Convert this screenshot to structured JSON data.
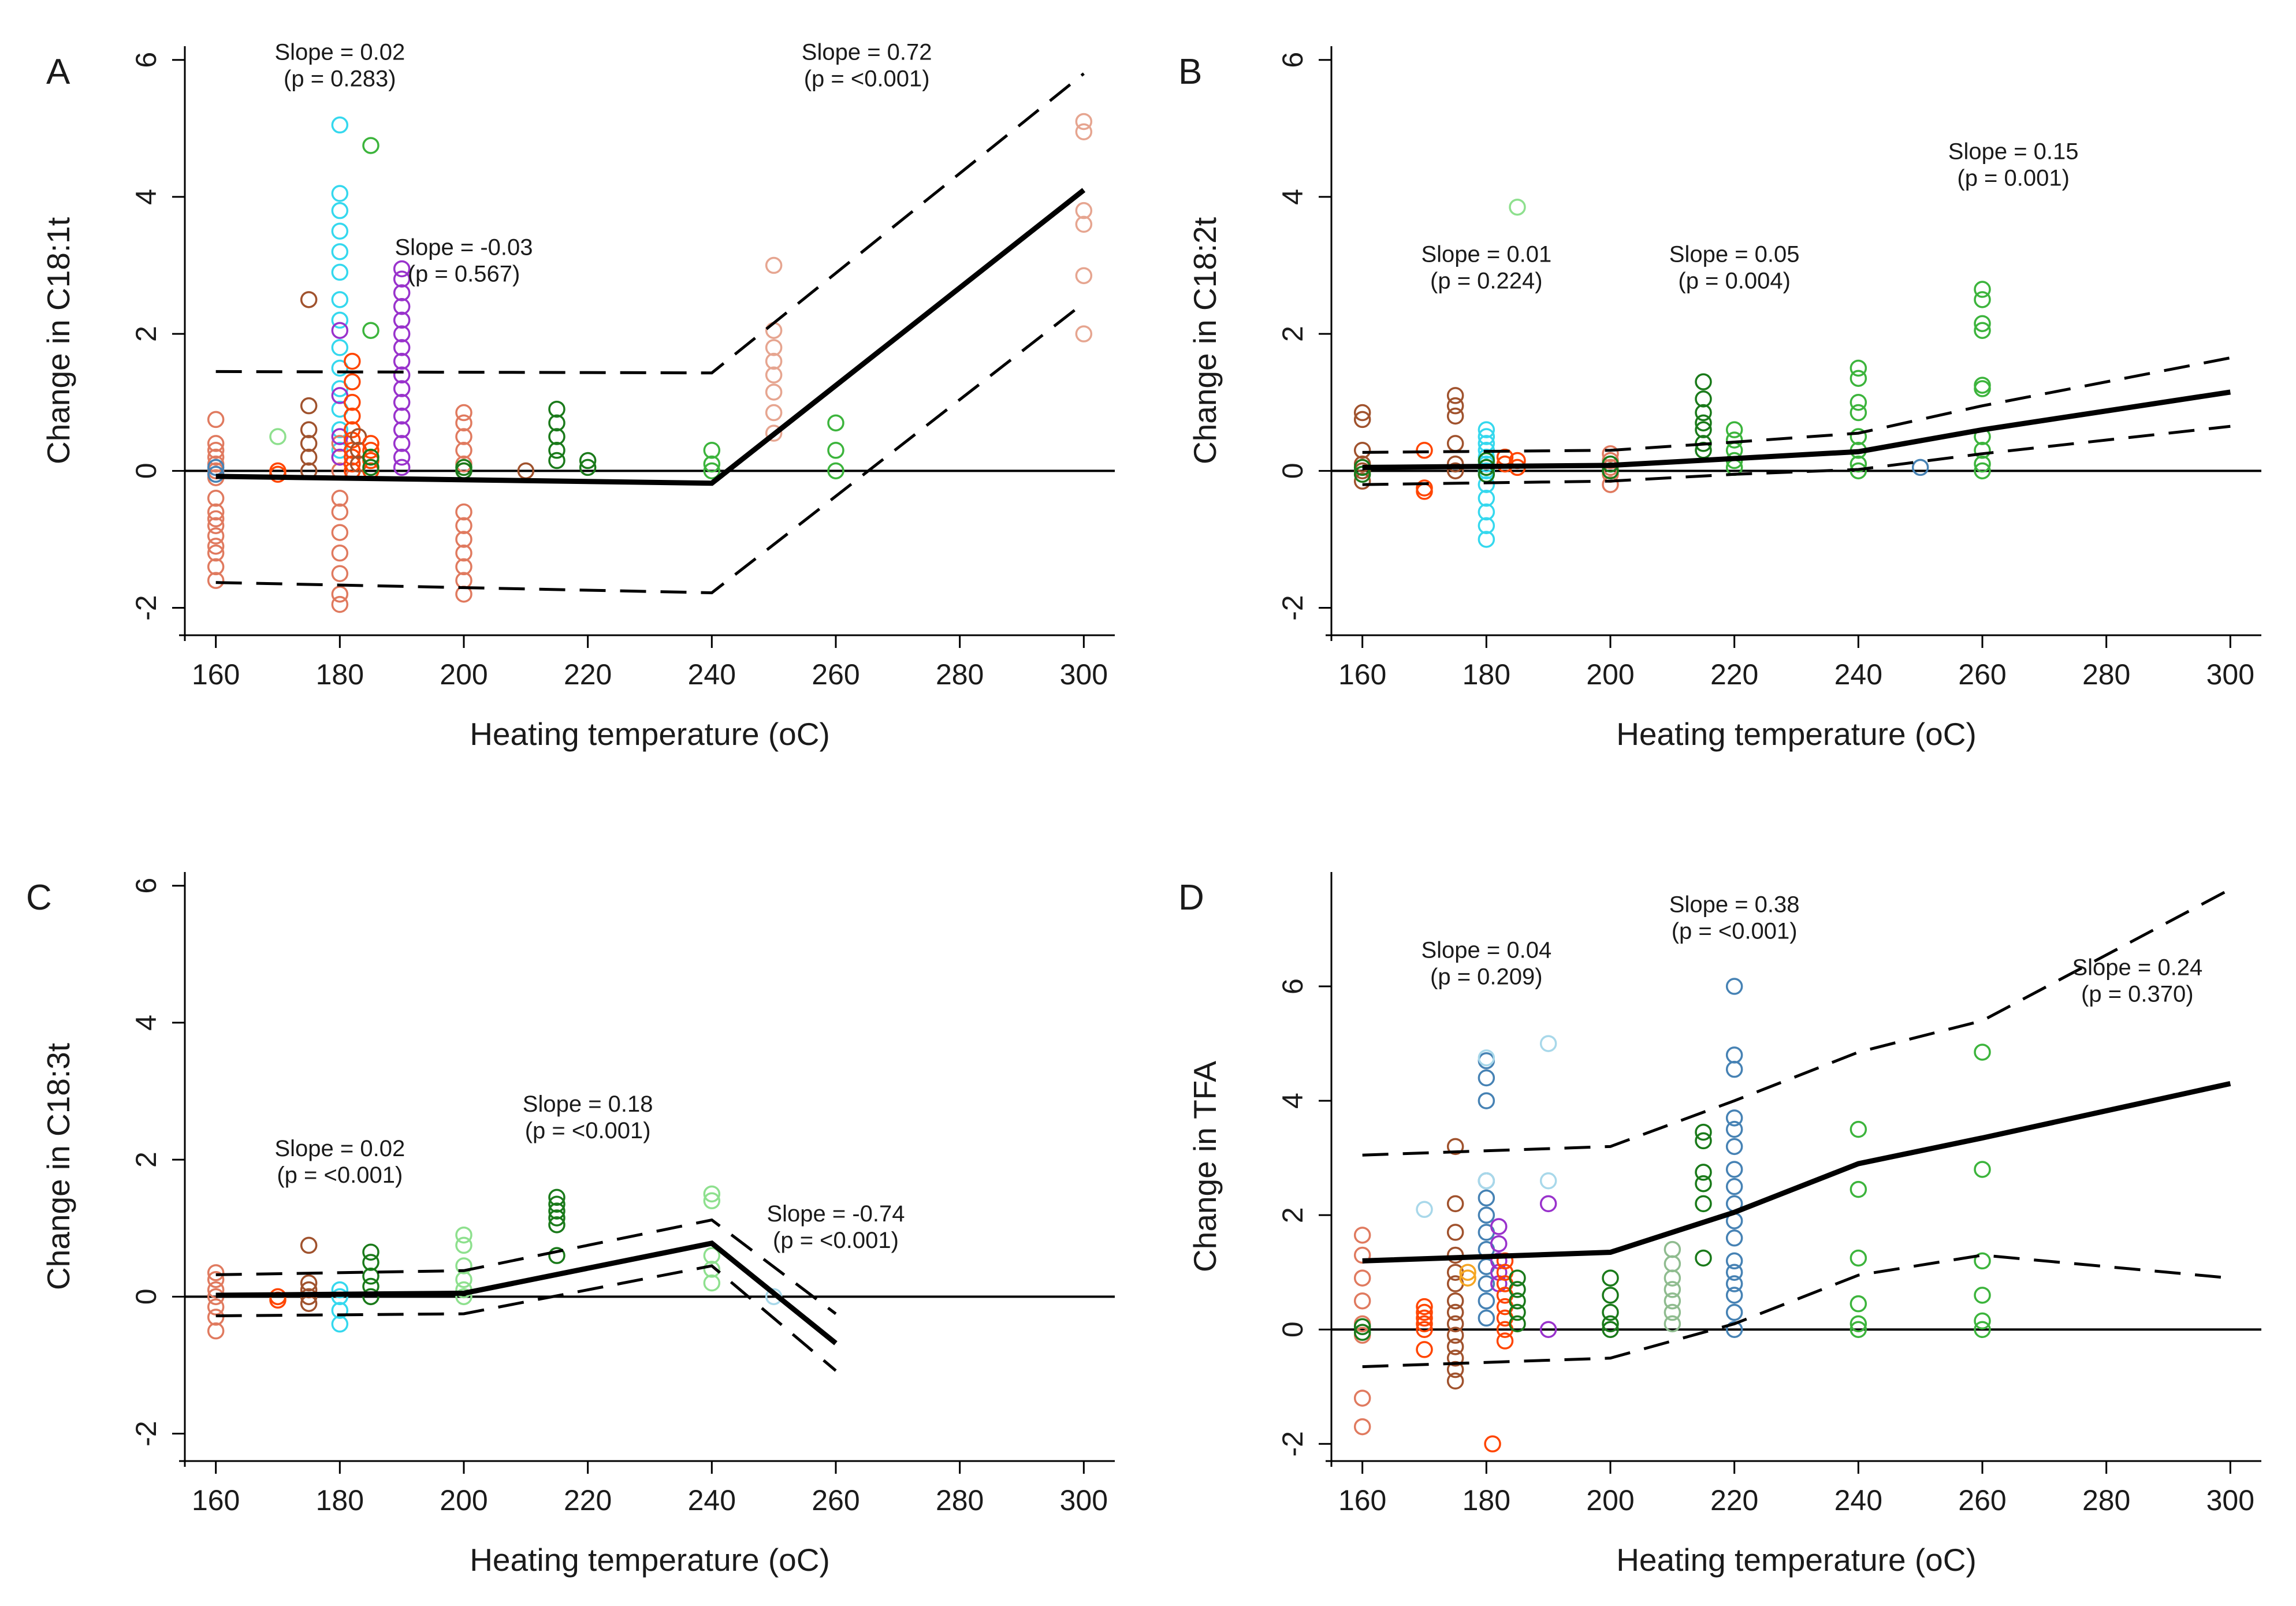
{
  "colors": {
    "salmon": "#e07a5f",
    "peach": "#e6a590",
    "brown": "#a0522d",
    "orange_red": "#ff4500",
    "cyan": "#35d8ee",
    "light_blue": "#a8d8ea",
    "purple": "#9932cc",
    "dark_green": "#1a7a1a",
    "green": "#3cb43c",
    "light_green": "#8ee08e",
    "steel_blue": "#4682b4",
    "gray_green": "#8fbc8f",
    "orange": "#f5a623",
    "black": "#000000"
  },
  "chart_data": [
    {
      "type": "scatter",
      "panel": "A",
      "title": "",
      "xlabel": "Heating temperature (oC)",
      "ylabel": "Change in C18:1t",
      "xlim": [
        155,
        305
      ],
      "ylim": [
        -2.4,
        6.2
      ],
      "xticks": [
        "160",
        "180",
        "200",
        "220",
        "240",
        "260",
        "280",
        "300"
      ],
      "yticks": [
        "-2",
        "0",
        "2",
        "4",
        "6"
      ],
      "zero_line": true,
      "fit": {
        "x": [
          160,
          240,
          300
        ],
        "mean": [
          -0.08,
          -0.18,
          4.1
        ],
        "upper": [
          1.45,
          1.43,
          5.8
        ],
        "lower": [
          -1.63,
          -1.78,
          2.45
        ]
      },
      "annotations": [
        {
          "line1": "Slope = 0.02",
          "line2": "(p = 0.283)",
          "x": 180,
          "y": 6.0
        },
        {
          "line1": "Slope = -0.03",
          "line2": "(p = 0.567)",
          "x": 200,
          "y": 3.15
        },
        {
          "line1": "Slope = 0.72",
          "line2": "(p = <0.001)",
          "x": 265,
          "y": 6.0
        }
      ],
      "points": [
        {
          "x": 160,
          "y": [
            0.75,
            0.4,
            0.3,
            0.2,
            0.1,
            0.0,
            -0.1,
            -0.4,
            -0.6,
            -0.7,
            -0.8,
            -0.95,
            -1.1,
            -1.2,
            -1.4,
            -1.6
          ],
          "color": "salmon"
        },
        {
          "x": 160,
          "y": [
            0.05,
            -0.05
          ],
          "color": "steel_blue"
        },
        {
          "x": 170,
          "y": [
            0.0,
            -0.05
          ],
          "color": "orange_red"
        },
        {
          "x": 170,
          "y": [
            0.5
          ],
          "color": "light_green"
        },
        {
          "x": 175,
          "y": [
            2.5,
            0.95,
            0.6,
            0.4,
            0.2,
            0.0
          ],
          "color": "brown"
        },
        {
          "x": 180,
          "y": [
            5.05,
            4.05,
            3.8,
            3.5,
            3.2,
            2.9,
            2.5,
            2.2,
            1.8,
            1.5,
            1.2,
            0.9,
            0.6,
            0.3
          ],
          "color": "cyan"
        },
        {
          "x": 180,
          "y": [
            0.4,
            0.2,
            0.0,
            -0.4,
            -0.6,
            -0.9,
            -1.2,
            -1.5,
            -1.8,
            -1.95
          ],
          "color": "salmon"
        },
        {
          "x": 180,
          "y": [
            2.05,
            1.1,
            0.5,
            0.2
          ],
          "color": "purple"
        },
        {
          "x": 182,
          "y": [
            1.6,
            1.3,
            1.0,
            0.8,
            0.6,
            0.45,
            0.3,
            0.2,
            0.1,
            0.0
          ],
          "color": "orange_red"
        },
        {
          "x": 183,
          "y": [
            0.5,
            0.3,
            0.1
          ],
          "color": "brown"
        },
        {
          "x": 185,
          "y": [
            4.75,
            2.05
          ],
          "color": "green"
        },
        {
          "x": 185,
          "y": [
            0.4,
            0.3,
            0.15,
            0.0
          ],
          "color": "orange_red"
        },
        {
          "x": 190,
          "y": [
            2.95,
            2.8,
            2.6,
            2.4,
            2.2,
            2.0,
            1.8,
            1.6,
            1.4,
            1.2,
            1.0,
            0.8,
            0.6,
            0.4,
            0.2,
            0.05
          ],
          "color": "purple"
        },
        {
          "x": 185,
          "y": [
            0.2,
            0.05
          ],
          "color": "dark_green"
        },
        {
          "x": 200,
          "y": [
            0.85,
            0.7,
            0.5,
            0.3,
            0.1,
            0.0,
            -0.6,
            -0.8,
            -1.0,
            -1.2,
            -1.4,
            -1.6,
            -1.8
          ],
          "color": "salmon"
        },
        {
          "x": 200,
          "y": [
            0.05,
            0.0
          ],
          "color": "dark_green"
        },
        {
          "x": 210,
          "y": [
            0.0
          ],
          "color": "brown"
        },
        {
          "x": 215,
          "y": [
            0.9,
            0.7,
            0.5,
            0.3,
            0.15
          ],
          "color": "dark_green"
        },
        {
          "x": 220,
          "y": [
            0.15,
            0.05
          ],
          "color": "dark_green"
        },
        {
          "x": 240,
          "y": [
            0.3,
            0.1,
            0.0
          ],
          "color": "green"
        },
        {
          "x": 250,
          "y": [
            3.0,
            2.05,
            1.8,
            1.6,
            1.4,
            1.15,
            0.85,
            0.55
          ],
          "color": "peach"
        },
        {
          "x": 260,
          "y": [
            0.7,
            0.3,
            0.0
          ],
          "color": "green"
        },
        {
          "x": 300,
          "y": [
            5.1,
            4.95,
            3.8,
            3.6,
            2.85,
            2.0
          ],
          "color": "peach"
        }
      ]
    },
    {
      "type": "scatter",
      "panel": "B",
      "title": "",
      "xlabel": "Heating temperature (oC)",
      "ylabel": "Change in C18:2t",
      "xlim": [
        155,
        305
      ],
      "ylim": [
        -2.4,
        6.2
      ],
      "xticks": [
        "160",
        "180",
        "200",
        "220",
        "240",
        "260",
        "280",
        "300"
      ],
      "yticks": [
        "-2",
        "0",
        "2",
        "4",
        "6"
      ],
      "zero_line": true,
      "fit": {
        "x": [
          160,
          200,
          220,
          240,
          260,
          300
        ],
        "mean": [
          0.05,
          0.08,
          0.18,
          0.28,
          0.6,
          1.15
        ],
        "upper": [
          0.27,
          0.3,
          0.42,
          0.55,
          0.95,
          1.65
        ],
        "lower": [
          -0.2,
          -0.15,
          -0.05,
          0.02,
          0.25,
          0.65
        ]
      },
      "annotations": [
        {
          "line1": "Slope = 0.01",
          "line2": "(p = 0.224)",
          "x": 180,
          "y": 3.05
        },
        {
          "line1": "Slope = 0.05",
          "line2": "(p = 0.004)",
          "x": 220,
          "y": 3.05
        },
        {
          "line1": "Slope = 0.15",
          "line2": "(p = 0.001)",
          "x": 265,
          "y": 4.55
        }
      ],
      "points": [
        {
          "x": 160,
          "y": [
            0.85,
            0.75,
            0.3,
            0.1,
            0.0,
            -0.15
          ],
          "color": "brown"
        },
        {
          "x": 160,
          "y": [
            0.05,
            -0.05
          ],
          "color": "dark_green"
        },
        {
          "x": 170,
          "y": [
            0.3,
            -0.25,
            -0.3
          ],
          "color": "orange_red"
        },
        {
          "x": 175,
          "y": [
            1.1,
            0.95,
            0.8,
            0.4,
            0.1,
            0.0
          ],
          "color": "brown"
        },
        {
          "x": 180,
          "y": [
            0.6,
            0.5,
            0.4,
            0.3,
            0.2,
            0.1,
            0.0,
            -0.2,
            -0.4,
            -0.6,
            -0.8,
            -1.0
          ],
          "color": "cyan"
        },
        {
          "x": 180,
          "y": [
            0.15,
            0.05,
            -0.05
          ],
          "color": "dark_green"
        },
        {
          "x": 183,
          "y": [
            0.2,
            0.1
          ],
          "color": "orange_red"
        },
        {
          "x": 185,
          "y": [
            3.85
          ],
          "color": "light_green"
        },
        {
          "x": 185,
          "y": [
            0.15,
            0.05
          ],
          "color": "orange_red"
        },
        {
          "x": 200,
          "y": [
            0.25,
            0.15,
            0.05,
            -0.05,
            -0.2
          ],
          "color": "salmon"
        },
        {
          "x": 200,
          "y": [
            0.1,
            0.0
          ],
          "color": "dark_green"
        },
        {
          "x": 215,
          "y": [
            1.3,
            1.05,
            0.85,
            0.7,
            0.6,
            0.4,
            0.3
          ],
          "color": "dark_green"
        },
        {
          "x": 220,
          "y": [
            0.6,
            0.45,
            0.3,
            0.15,
            0.05
          ],
          "color": "green"
        },
        {
          "x": 240,
          "y": [
            1.5,
            1.35,
            1.0,
            0.85,
            0.5,
            0.3,
            0.1,
            0.0
          ],
          "color": "green"
        },
        {
          "x": 250,
          "y": [
            0.05
          ],
          "color": "steel_blue"
        },
        {
          "x": 260,
          "y": [
            2.65,
            2.5,
            2.15,
            2.05,
            1.25,
            1.2,
            0.5,
            0.3,
            0.1,
            0.0
          ],
          "color": "green"
        }
      ]
    },
    {
      "type": "scatter",
      "panel": "C",
      "title": "",
      "xlabel": "Heating temperature (oC)",
      "ylabel": "Change in C18:3t",
      "xlim": [
        155,
        305
      ],
      "ylim": [
        -2.4,
        6.2
      ],
      "xticks": [
        "160",
        "180",
        "200",
        "220",
        "240",
        "260",
        "280",
        "300"
      ],
      "yticks": [
        "-2",
        "0",
        "2",
        "4",
        "6"
      ],
      "zero_line": true,
      "fit": {
        "x": [
          160,
          200,
          240,
          260
        ],
        "mean": [
          0.02,
          0.05,
          0.78,
          -0.68
        ],
        "upper": [
          0.32,
          0.38,
          1.12,
          -0.25
        ],
        "lower": [
          -0.28,
          -0.25,
          0.45,
          -1.08
        ]
      },
      "annotations": [
        {
          "line1": "Slope = 0.02",
          "line2": "(p = <0.001)",
          "x": 180,
          "y": 2.05
        },
        {
          "line1": "Slope = 0.18",
          "line2": "(p = <0.001)",
          "x": 220,
          "y": 2.7
        },
        {
          "line1": "Slope = -0.74",
          "line2": "(p = <0.001)",
          "x": 260,
          "y": 1.1
        }
      ],
      "points": [
        {
          "x": 160,
          "y": [
            0.35,
            0.25,
            0.1,
            0.0,
            -0.15,
            -0.3,
            -0.5
          ],
          "color": "salmon"
        },
        {
          "x": 170,
          "y": [
            0.0,
            -0.05
          ],
          "color": "orange_red"
        },
        {
          "x": 175,
          "y": [
            0.75,
            0.2,
            0.1,
            0.0,
            -0.1
          ],
          "color": "brown"
        },
        {
          "x": 180,
          "y": [
            0.1,
            0.0,
            -0.2,
            -0.4
          ],
          "color": "cyan"
        },
        {
          "x": 185,
          "y": [
            0.65,
            0.5,
            0.3,
            0.15,
            0.0
          ],
          "color": "dark_green"
        },
        {
          "x": 200,
          "y": [
            0.9,
            0.75,
            0.45,
            0.25,
            0.1,
            0.0
          ],
          "color": "light_green"
        },
        {
          "x": 215,
          "y": [
            1.45,
            1.35,
            1.25,
            1.15,
            1.05,
            0.6
          ],
          "color": "dark_green"
        },
        {
          "x": 240,
          "y": [
            1.5,
            1.4,
            0.6,
            0.4,
            0.2
          ],
          "color": "light_green"
        },
        {
          "x": 250,
          "y": [
            0.0
          ],
          "color": "light_blue"
        }
      ]
    },
    {
      "type": "scatter",
      "panel": "D",
      "title": "",
      "xlabel": "Heating temperature (oC)",
      "ylabel": "Change in TFA",
      "xlim": [
        155,
        305
      ],
      "ylim": [
        -2.3,
        8.0
      ],
      "xticks": [
        "160",
        "180",
        "200",
        "220",
        "240",
        "260",
        "280",
        "300"
      ],
      "yticks": [
        "-2",
        "0",
        "2",
        "4",
        "6"
      ],
      "zero_line": true,
      "fit": {
        "x": [
          160,
          200,
          220,
          240,
          260,
          300
        ],
        "mean": [
          1.2,
          1.35,
          2.05,
          2.9,
          3.35,
          4.3
        ],
        "upper": [
          3.05,
          3.2,
          4.0,
          4.85,
          5.4,
          7.7
        ],
        "lower": [
          -0.65,
          -0.5,
          0.1,
          0.95,
          1.3,
          0.9
        ]
      },
      "annotations": [
        {
          "line1": "Slope = 0.04",
          "line2": "(p = 0.209)",
          "x": 180,
          "y": 6.5
        },
        {
          "line1": "Slope = 0.38",
          "line2": "(p = <0.001)",
          "x": 220,
          "y": 7.3
        },
        {
          "line1": "Slope = 0.24",
          "line2": "(p = 0.370)",
          "x": 285,
          "y": 6.2
        }
      ],
      "points": [
        {
          "x": 160,
          "y": [
            1.65,
            1.3,
            0.9,
            0.5,
            0.1,
            -0.1,
            -1.2,
            -1.7
          ],
          "color": "salmon"
        },
        {
          "x": 160,
          "y": [
            0.05,
            -0.05
          ],
          "color": "dark_green"
        },
        {
          "x": 170,
          "y": [
            0.4,
            0.3,
            0.2,
            0.1,
            0.0,
            -0.35
          ],
          "color": "orange_red"
        },
        {
          "x": 170,
          "y": [
            2.1
          ],
          "color": "light_blue"
        },
        {
          "x": 175,
          "y": [
            3.2,
            2.2,
            1.7,
            1.3,
            1.0,
            0.8,
            0.5,
            0.3,
            0.1,
            -0.1,
            -0.3,
            -0.5,
            -0.7,
            -0.9
          ],
          "color": "brown"
        },
        {
          "x": 177,
          "y": [
            1.0,
            0.9
          ],
          "color": "orange"
        },
        {
          "x": 180,
          "y": [
            4.7,
            4.4,
            4.0,
            2.6,
            2.3,
            2.0,
            1.7,
            1.4,
            1.1,
            0.8,
            0.5,
            0.2
          ],
          "color": "steel_blue"
        },
        {
          "x": 180,
          "y": [
            4.75,
            2.6
          ],
          "color": "light_blue"
        },
        {
          "x": 181,
          "y": [
            -2.0
          ],
          "color": "orange_red"
        },
        {
          "x": 182,
          "y": [
            1.8,
            1.5,
            1.2,
            1.0,
            0.8
          ],
          "color": "purple"
        },
        {
          "x": 183,
          "y": [
            1.2,
            1.0,
            0.8,
            0.6,
            0.4,
            0.2,
            0.0,
            -0.2
          ],
          "color": "orange_red"
        },
        {
          "x": 185,
          "y": [
            0.9,
            0.7,
            0.5,
            0.3,
            0.1
          ],
          "color": "dark_green"
        },
        {
          "x": 190,
          "y": [
            5.0,
            2.6
          ],
          "color": "light_blue"
        },
        {
          "x": 190,
          "y": [
            2.2
          ],
          "color": "purple"
        },
        {
          "x": 190,
          "y": [
            0.0
          ],
          "color": "purple"
        },
        {
          "x": 200,
          "y": [
            0.9,
            0.6,
            0.3,
            0.1,
            0.0
          ],
          "color": "dark_green"
        },
        {
          "x": 210,
          "y": [
            1.4,
            1.15,
            0.9,
            0.7,
            0.5,
            0.3,
            0.1
          ],
          "color": "gray_green"
        },
        {
          "x": 215,
          "y": [
            3.45,
            3.3,
            2.75,
            2.55,
            2.2,
            1.25
          ],
          "color": "dark_green"
        },
        {
          "x": 220,
          "y": [
            6.0,
            4.8,
            4.55,
            3.7,
            3.5,
            3.2,
            2.8,
            2.5,
            2.2,
            1.9,
            1.6,
            1.2,
            1.0,
            0.8,
            0.6,
            0.3,
            0.0
          ],
          "color": "steel_blue"
        },
        {
          "x": 240,
          "y": [
            3.5,
            2.45,
            1.25,
            0.45,
            0.1,
            0.0
          ],
          "color": "green"
        },
        {
          "x": 260,
          "y": [
            4.85,
            2.8,
            1.2,
            0.6,
            0.15,
            0.0
          ],
          "color": "green"
        }
      ]
    }
  ]
}
